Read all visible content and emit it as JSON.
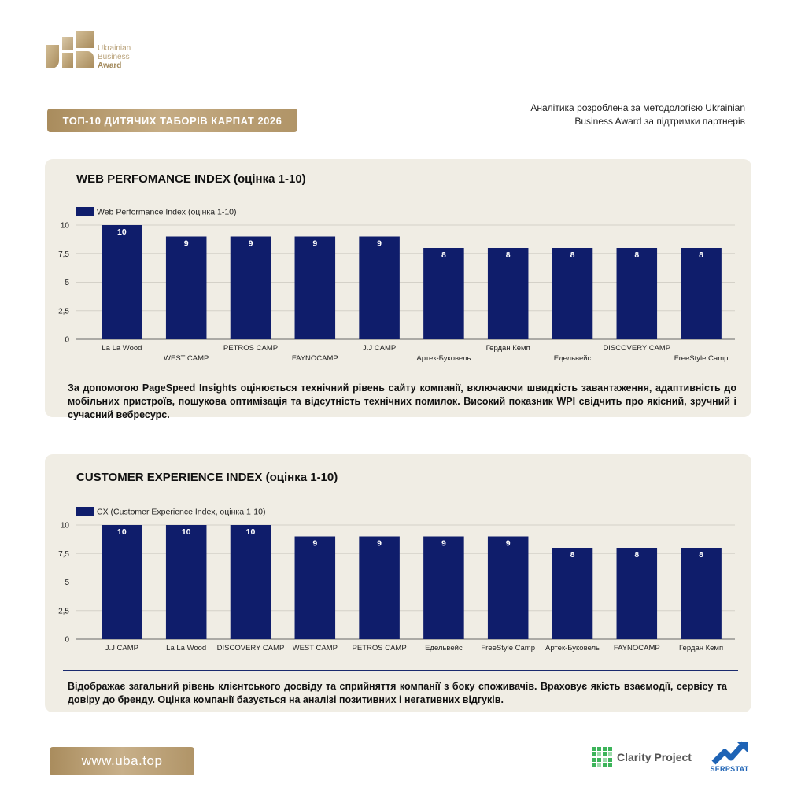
{
  "logo": {
    "line1": "Ukrainian",
    "line2": "Business",
    "line3": "Award"
  },
  "header": {
    "title": "ТОП-10 ДИТЯЧИХ ТАБОРІВ КАРПАТ 2026",
    "note": "Аналітика розроблена за методологією Ukrainian Business Award за підтримки партнерів"
  },
  "chart_data": [
    {
      "type": "bar",
      "title": "WEB PERFOMANCE INDEX (оцінка 1-10)",
      "categories": [
        "La La Wood",
        "WEST CAMP",
        "PETROS CAMP",
        "FAYNOCAMP",
        "J.J CAMP",
        "Артек-Буковель",
        "Гердан Кемп",
        "Едельвейс",
        "DISCOVERY CAMP",
        "FreeStyle Camp"
      ],
      "series": [
        {
          "name": "Web Performance Index (оцінка 1-10)",
          "values": [
            10,
            9,
            9,
            9,
            9,
            8,
            8,
            8,
            8,
            8
          ]
        }
      ],
      "yticks": [
        "0",
        "2,5",
        "5",
        "7,5",
        "10"
      ],
      "ylim": [
        0,
        10
      ],
      "grid": true,
      "legend": "top-left",
      "color": "#0f1d6b",
      "staggered_labels": true
    },
    {
      "type": "bar",
      "title": "CUSTOMER EXPERIENCE INDEX (оцінка 1-10)",
      "categories": [
        "J.J CAMP",
        "La La Wood",
        "DISCOVERY CAMP",
        "WEST CAMP",
        "PETROS CAMP",
        "Едельвейс",
        "FreeStyle Camp",
        "Артек-Буковель",
        "FAYNOCAMP",
        "Гердан Кемп"
      ],
      "series": [
        {
          "name": "CX (Customer Experience Index, оцінка 1-10)",
          "values": [
            10,
            10,
            10,
            9,
            9,
            9,
            9,
            8,
            8,
            8
          ]
        }
      ],
      "yticks": [
        "0",
        "2,5",
        "5",
        "7,5",
        "10"
      ],
      "ylim": [
        0,
        10
      ],
      "grid": true,
      "legend": "top-left",
      "color": "#0f1d6b",
      "staggered_labels": false
    }
  ],
  "descriptions": {
    "web": "За допомогою PageSpeed Insights оцінюється технічний рівень сайту компанії, включаючи швидкість завантаження, адаптивність до мобільних пристроїв, пошукова оптимізація та відсутність технічних помилок. Високий показник WPI свідчить про якісний, зручний і сучасний вебресурс.",
    "cx": "Відображає загальний рівень клієнтського досвіду та сприйняття компанії з боку споживачів. Враховує якість взаємодії, сервісу та довіру до бренду. Оцінка компанії базується на аналізі позитивних і негативних відгуків."
  },
  "footer": {
    "url": "www.uba.top",
    "partner1": "Clarity Project",
    "partner2": "SERPSTAT"
  }
}
